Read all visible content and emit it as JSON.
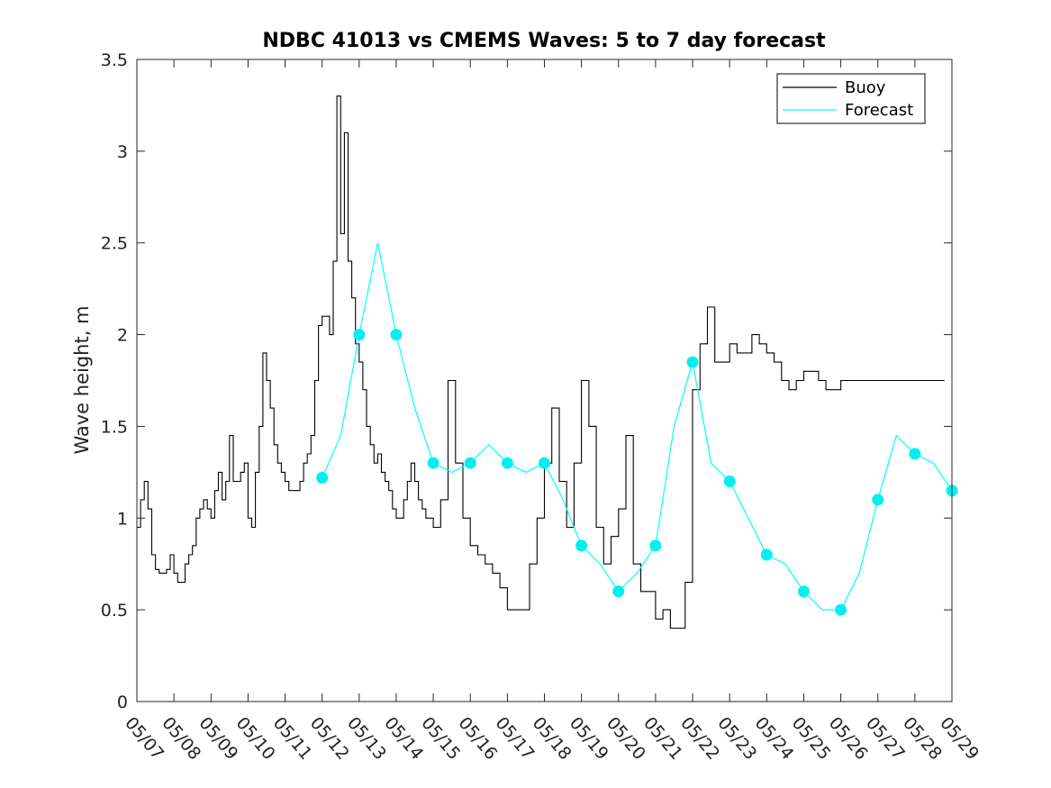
{
  "chart_data": {
    "type": "line",
    "title": "NDBC 41013 vs CMEMS Waves: 5 to 7 day forecast",
    "xlabel": "",
    "ylabel": "Wave height, m",
    "xlim": [
      0,
      22
    ],
    "ylim": [
      0,
      3.5
    ],
    "grid": false,
    "legend_placement": "top-right",
    "x_tick_labels": [
      "05/07",
      "05/08",
      "05/09",
      "05/10",
      "05/11",
      "05/12",
      "05/13",
      "05/14",
      "05/15",
      "05/16",
      "05/17",
      "05/18",
      "05/19",
      "05/20",
      "05/21",
      "05/22",
      "05/23",
      "05/24",
      "05/25",
      "05/26",
      "05/27",
      "05/28",
      "05/29"
    ],
    "y_ticks": [
      0,
      0.5,
      1,
      1.5,
      2,
      2.5,
      3,
      3.5
    ],
    "y_tick_labels": [
      "0",
      "0.5",
      "1",
      "1.5",
      "2",
      "2.5",
      "3",
      "3.5"
    ],
    "colors": {
      "buoy": "#000000",
      "forecast": "#00ffff",
      "forecast_marker": "#00f0f0"
    },
    "series": [
      {
        "name": "Buoy",
        "x": [
          0,
          0.1,
          0.2,
          0.3,
          0.4,
          0.5,
          0.6,
          0.7,
          0.8,
          0.9,
          1.0,
          1.1,
          1.2,
          1.3,
          1.4,
          1.5,
          1.6,
          1.7,
          1.8,
          1.9,
          2.0,
          2.1,
          2.2,
          2.3,
          2.4,
          2.5,
          2.6,
          2.7,
          2.8,
          2.9,
          3.0,
          3.1,
          3.2,
          3.3,
          3.4,
          3.5,
          3.6,
          3.7,
          3.8,
          3.9,
          4.0,
          4.1,
          4.2,
          4.3,
          4.4,
          4.5,
          4.6,
          4.7,
          4.8,
          4.9,
          5.0,
          5.1,
          5.2,
          5.3,
          5.4,
          5.5,
          5.6,
          5.7,
          5.8,
          5.9,
          6.0,
          6.1,
          6.2,
          6.3,
          6.4,
          6.5,
          6.6,
          6.7,
          6.8,
          6.9,
          7.0,
          7.1,
          7.2,
          7.3,
          7.4,
          7.5,
          7.6,
          7.7,
          7.8,
          7.9,
          8.0,
          8.2,
          8.4,
          8.6,
          8.8,
          9.0,
          9.2,
          9.4,
          9.6,
          9.8,
          10.0,
          10.2,
          10.4,
          10.6,
          10.8,
          11.0,
          11.2,
          11.4,
          11.6,
          11.8,
          12.0,
          12.2,
          12.4,
          12.6,
          12.8,
          13.0,
          13.2,
          13.4,
          13.6,
          13.8,
          14.0,
          14.2,
          14.4,
          14.6,
          14.8,
          15.0,
          15.2,
          15.4,
          15.6,
          15.8,
          16.0,
          16.2,
          16.4,
          16.6,
          16.8,
          17.0,
          17.2,
          17.4,
          17.6,
          17.8,
          18.0,
          18.2,
          18.4,
          18.6,
          18.8,
          19.0,
          19.2,
          19.4,
          19.6,
          19.8,
          20.0,
          20.2,
          20.4,
          20.6,
          20.8,
          21.0,
          21.2,
          21.4,
          21.6,
          21.8
        ],
        "values": [
          0.95,
          1.1,
          1.2,
          1.05,
          0.8,
          0.72,
          0.7,
          0.7,
          0.72,
          0.8,
          0.7,
          0.65,
          0.65,
          0.75,
          0.8,
          0.85,
          1.0,
          1.05,
          1.1,
          1.05,
          1.0,
          1.15,
          1.25,
          1.1,
          1.2,
          1.45,
          1.2,
          1.2,
          1.25,
          1.3,
          1.0,
          0.95,
          1.25,
          1.5,
          1.9,
          1.75,
          1.6,
          1.4,
          1.3,
          1.25,
          1.2,
          1.15,
          1.15,
          1.15,
          1.2,
          1.3,
          1.35,
          1.45,
          1.75,
          2.05,
          2.1,
          2.1,
          2.0,
          2.4,
          3.3,
          2.55,
          3.1,
          2.4,
          2.2,
          1.95,
          1.85,
          1.7,
          1.5,
          1.4,
          1.3,
          1.35,
          1.25,
          1.2,
          1.15,
          1.05,
          1.0,
          1.0,
          1.1,
          1.2,
          1.3,
          1.2,
          1.1,
          1.05,
          1.0,
          1.0,
          0.95,
          1.1,
          1.75,
          1.3,
          1.0,
          0.85,
          0.8,
          0.75,
          0.7,
          0.62,
          0.5,
          0.5,
          0.5,
          0.75,
          1.0,
          1.3,
          1.6,
          1.2,
          0.95,
          1.3,
          1.75,
          1.5,
          0.95,
          0.75,
          0.9,
          1.05,
          1.45,
          0.75,
          0.6,
          0.6,
          0.45,
          0.5,
          0.4,
          0.4,
          0.65,
          1.7,
          1.95,
          2.15,
          1.85,
          1.85,
          1.95,
          1.9,
          1.9,
          2.0,
          1.95,
          1.9,
          1.85,
          1.75,
          1.7,
          1.75,
          1.8,
          1.8,
          1.75,
          1.7,
          1.7,
          1.75,
          1.75,
          1.75,
          1.75,
          1.75,
          1.75,
          1.75,
          1.75,
          1.75,
          1.75,
          1.75,
          1.75,
          1.75,
          1.75,
          1.75
        ]
      },
      {
        "name": "Forecast",
        "x": [
          5.0,
          5.5,
          6.0,
          6.5,
          7.0,
          7.5,
          8.0,
          8.5,
          9.0,
          9.5,
          10.0,
          10.5,
          11.0,
          11.5,
          12.0,
          12.5,
          13.0,
          13.5,
          14.0,
          14.5,
          15.0,
          15.5,
          16.0,
          16.5,
          17.0,
          17.5,
          18.0,
          18.5,
          19.0,
          19.5,
          20.0,
          20.5,
          21.0,
          21.5,
          22.0
        ],
        "values": [
          1.22,
          1.45,
          2.0,
          2.5,
          2.0,
          1.6,
          1.3,
          1.25,
          1.3,
          1.4,
          1.3,
          1.25,
          1.3,
          1.1,
          0.85,
          0.75,
          0.6,
          0.7,
          0.85,
          1.5,
          1.85,
          1.3,
          1.2,
          1.0,
          0.8,
          0.75,
          0.6,
          0.5,
          0.5,
          0.7,
          1.1,
          1.45,
          1.35,
          1.3,
          1.15
        ]
      }
    ]
  }
}
